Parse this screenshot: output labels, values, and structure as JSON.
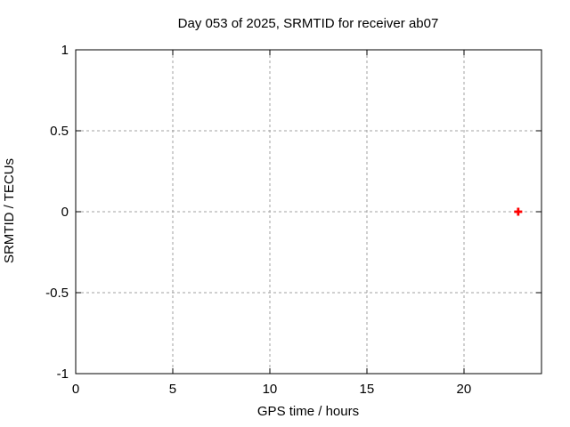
{
  "chart_data": {
    "type": "scatter",
    "title": "Day 053 of 2025, SRMTID for receiver ab07",
    "xlabel": "GPS time / hours",
    "ylabel": "SRMTID / TECUs",
    "xlim": [
      0,
      24
    ],
    "ylim": [
      -1,
      1
    ],
    "xticks": [
      0,
      5,
      10,
      15,
      20
    ],
    "xtick_labels": [
      "0",
      "5",
      "10",
      "15",
      "20"
    ],
    "yticks": [
      -1,
      -0.5,
      0,
      0.5,
      1
    ],
    "ytick_labels": [
      "-1",
      "-0.5",
      "0",
      "0.5",
      "1"
    ],
    "grid": true,
    "grid_style": "dashed",
    "legend": "none",
    "series": [
      {
        "name": "SRMTID",
        "marker": "plus",
        "color": "#ff0000",
        "points": [
          {
            "x": 22.8,
            "y": 0.0
          }
        ]
      }
    ]
  },
  "colors": {
    "background": "#ffffff",
    "axis": "#000000",
    "grid": "#a0a0a0",
    "text": "#000000"
  }
}
